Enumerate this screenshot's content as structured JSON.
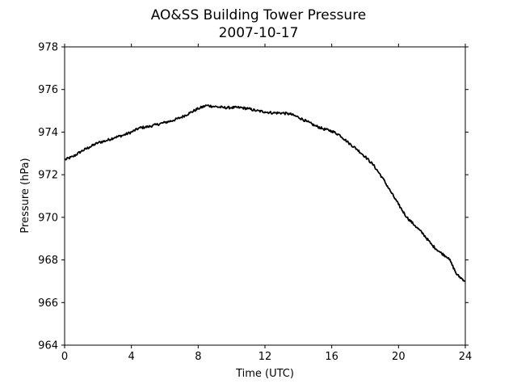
{
  "chart_data": {
    "type": "line",
    "title": "AO&SS Building Tower Pressure",
    "subtitle": "2007-10-17",
    "xlabel": "Time (UTC)",
    "ylabel": "Pressure (hPa)",
    "xlim": [
      0,
      24
    ],
    "ylim": [
      964,
      978
    ],
    "xticks": [
      0,
      4,
      8,
      12,
      16,
      20,
      24
    ],
    "yticks": [
      964,
      966,
      968,
      970,
      972,
      974,
      976,
      978
    ],
    "grid": false,
    "series": [
      {
        "color": "#000000",
        "x": [
          0,
          0.5,
          1,
          1.5,
          2,
          2.5,
          3,
          3.5,
          4,
          4.5,
          5,
          5.5,
          6,
          6.5,
          7,
          7.5,
          8,
          8.5,
          9,
          9.5,
          10,
          10.5,
          11,
          11.5,
          12,
          12.5,
          13,
          13.5,
          14,
          14.5,
          15,
          15.5,
          16,
          16.5,
          17,
          17.5,
          18,
          18.5,
          19,
          19.5,
          20,
          20.5,
          21,
          21.5,
          22,
          22.5,
          23,
          23.5,
          24
        ],
        "y": [
          972.7,
          972.85,
          973.1,
          973.3,
          973.5,
          973.6,
          973.75,
          973.85,
          974.0,
          974.2,
          974.25,
          974.35,
          974.45,
          974.55,
          974.7,
          974.9,
          975.1,
          975.25,
          975.2,
          975.15,
          975.15,
          975.15,
          975.1,
          975.0,
          974.95,
          974.9,
          974.9,
          974.85,
          974.7,
          974.5,
          974.3,
          974.15,
          974.05,
          973.85,
          973.5,
          973.2,
          972.85,
          972.45,
          971.9,
          971.25,
          970.6,
          970.0,
          969.6,
          969.2,
          968.7,
          968.35,
          968.1,
          967.3,
          967.0
        ]
      }
    ]
  }
}
